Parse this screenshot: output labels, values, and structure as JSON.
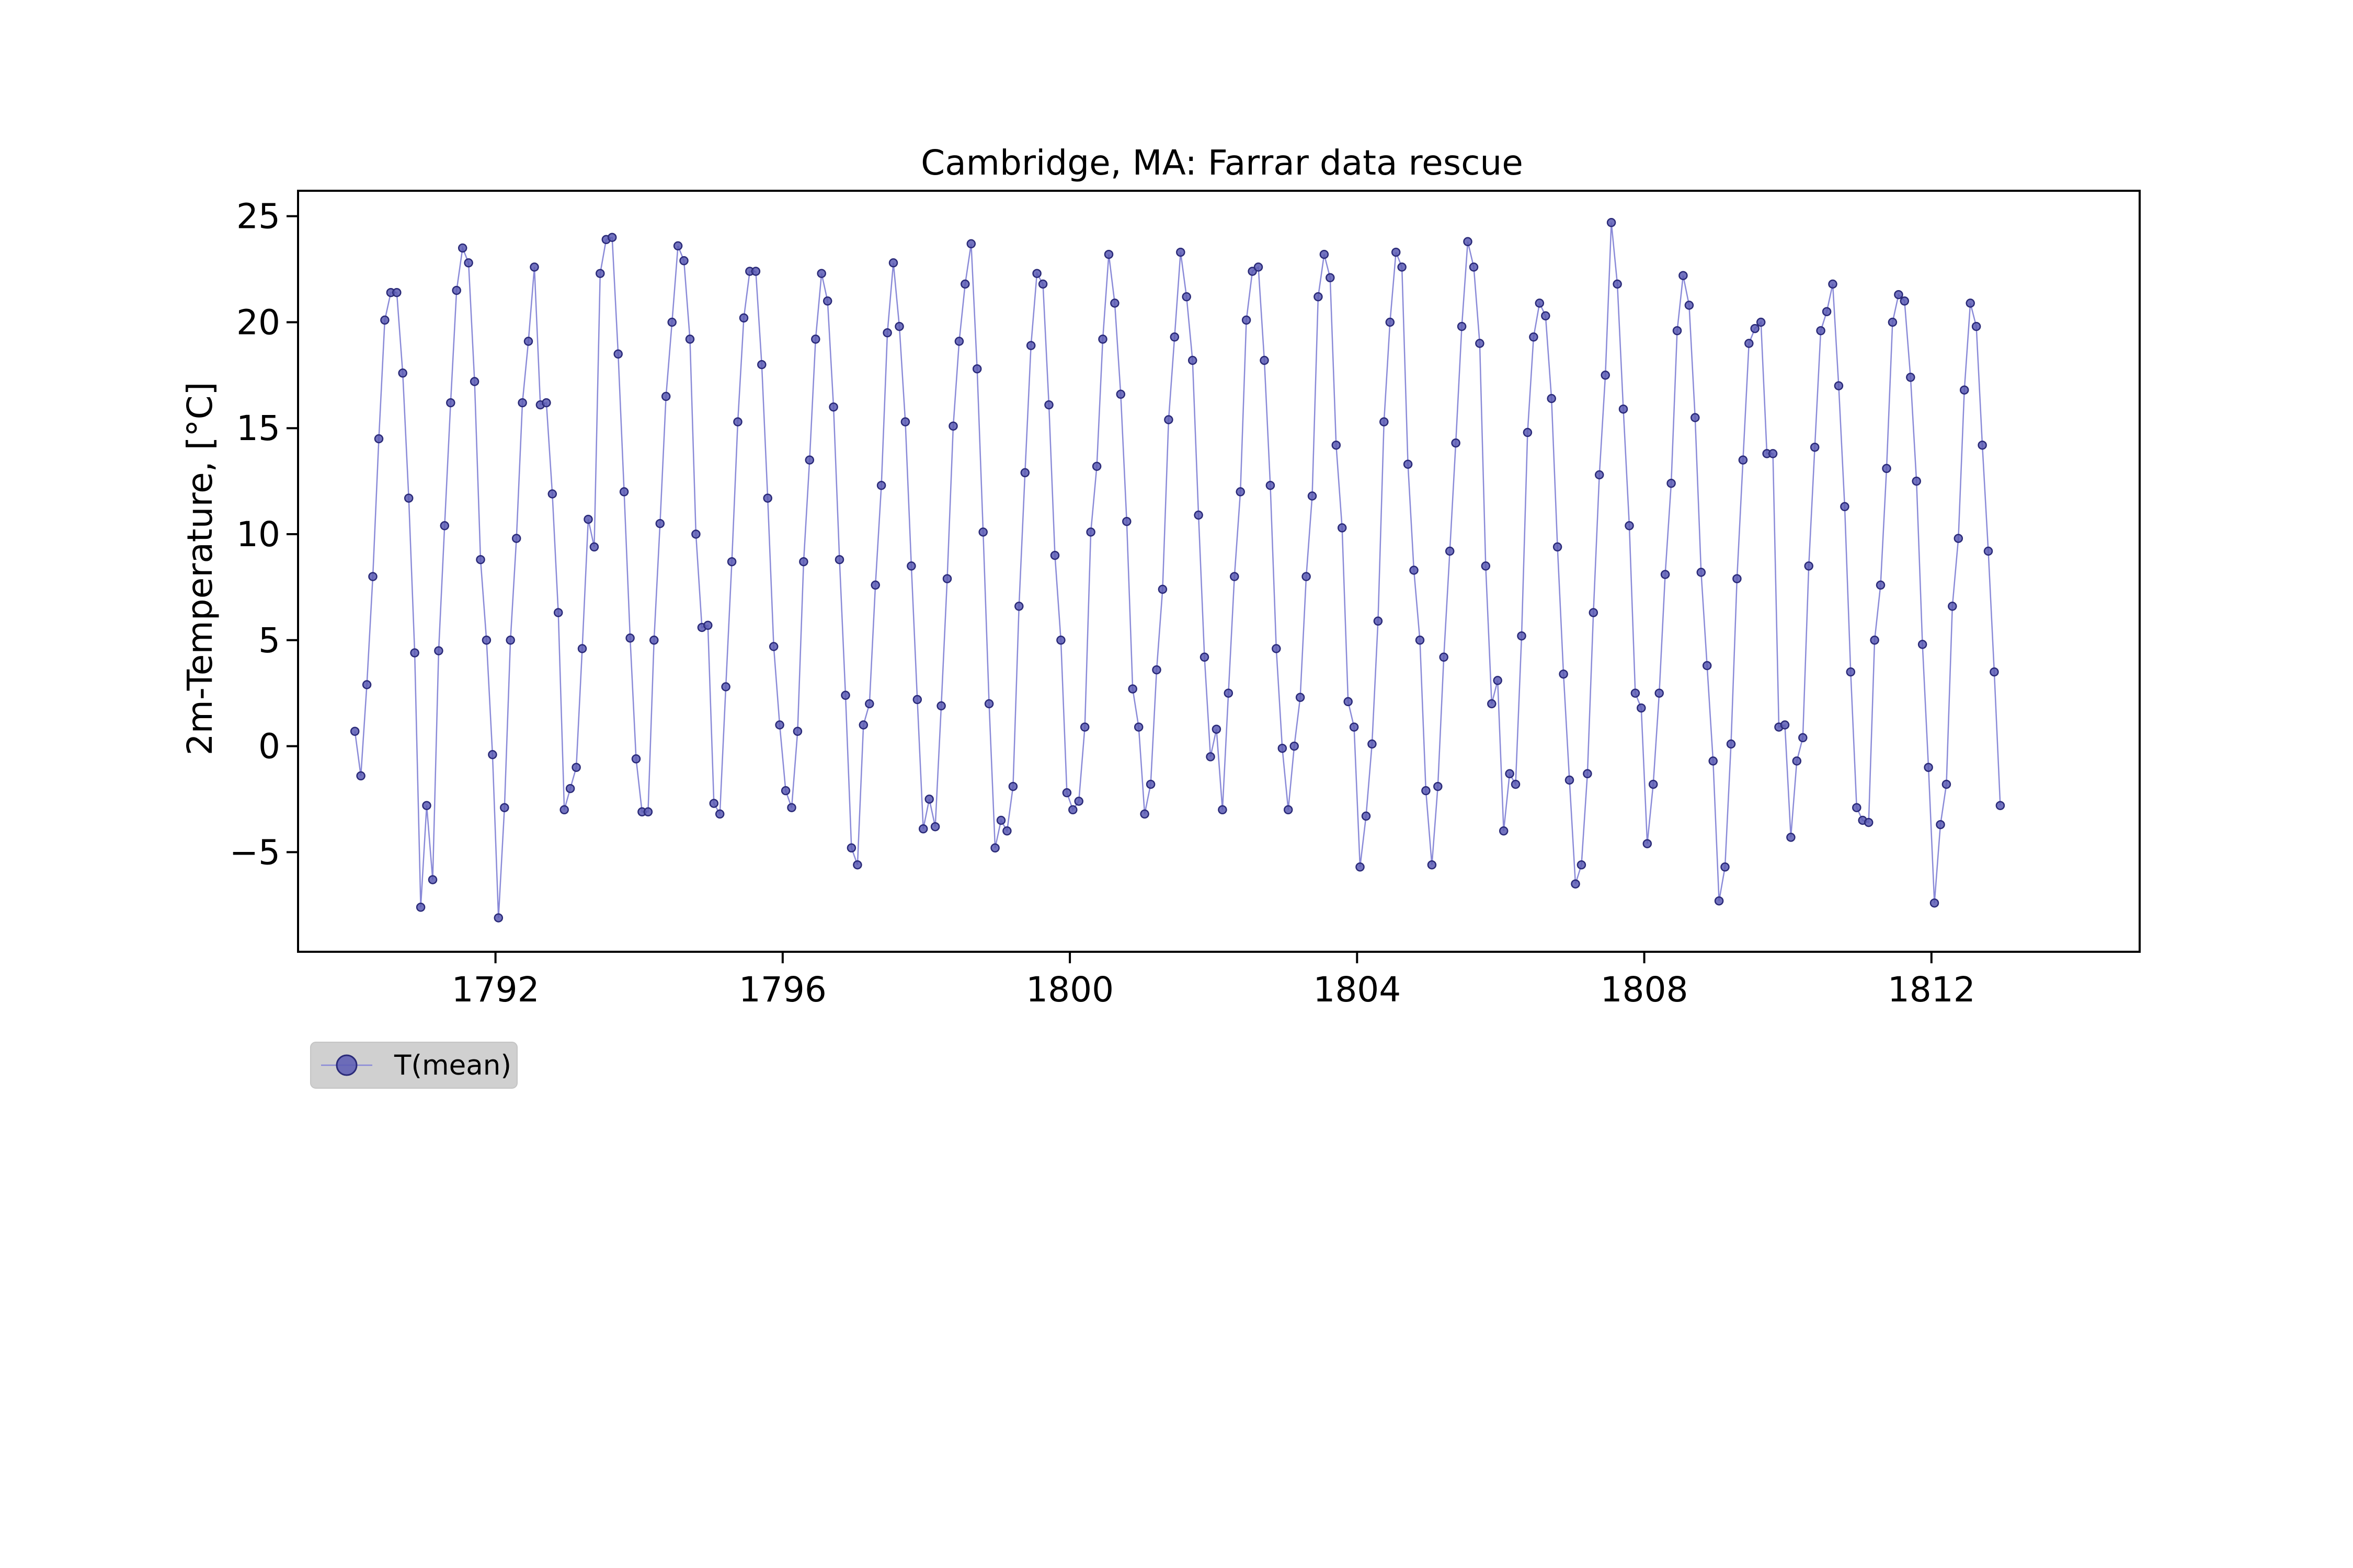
{
  "chart_data": {
    "type": "line",
    "title": "Cambridge, MA: Farrar data rescue",
    "xlabel": "",
    "ylabel": "2m-Temperature, [°C]",
    "xlim": [
      1789.25,
      1814.9
    ],
    "ylim": [
      -9.7,
      26.2
    ],
    "x_ticks": [
      1792,
      1796,
      1800,
      1804,
      1808,
      1812
    ],
    "y_ticks": [
      -5,
      0,
      5,
      10,
      15,
      20,
      25
    ],
    "grid": false,
    "legend_position": "below-left",
    "colors": {
      "line": "#8a8ad8",
      "marker_fill": "#5a5ab4",
      "marker_edge": "#2a2a78",
      "legend_bg": "#d0d0d0"
    },
    "start_year": 1790,
    "series": [
      {
        "name": "T(mean)",
        "values": [
          0.7,
          -1.4,
          2.9,
          8.0,
          14.5,
          20.1,
          21.4,
          21.4,
          17.6,
          11.7,
          4.4,
          -7.6,
          -2.8,
          -6.3,
          4.5,
          10.4,
          16.2,
          21.5,
          23.5,
          22.8,
          17.2,
          8.8,
          5.0,
          -0.4,
          -8.1,
          -2.9,
          5.0,
          9.8,
          16.2,
          19.1,
          22.6,
          16.1,
          16.2,
          11.9,
          6.3,
          -3.0,
          -2.0,
          -1.0,
          4.6,
          10.7,
          9.4,
          22.3,
          23.9,
          24.0,
          18.5,
          12.0,
          5.1,
          -0.6,
          -3.1,
          -3.1,
          5.0,
          10.5,
          16.5,
          20.0,
          23.6,
          22.9,
          19.2,
          10.0,
          5.6,
          5.7,
          -2.7,
          -3.2,
          2.8,
          8.7,
          15.3,
          20.2,
          22.4,
          22.4,
          18.0,
          11.7,
          4.7,
          1.0,
          -2.1,
          -2.9,
          0.7,
          8.7,
          13.5,
          19.2,
          22.3,
          21.0,
          16.0,
          8.8,
          2.4,
          -4.8,
          -5.6,
          1.0,
          2.0,
          7.6,
          12.3,
          19.5,
          22.8,
          19.8,
          15.3,
          8.5,
          2.2,
          -3.9,
          -2.5,
          -3.8,
          1.9,
          7.9,
          15.1,
          19.1,
          21.8,
          23.7,
          17.8,
          10.1,
          2.0,
          -4.8,
          -3.5,
          -4.0,
          -1.9,
          6.6,
          12.9,
          18.9,
          22.3,
          21.8,
          16.1,
          9.0,
          5.0,
          -2.2,
          -3.0,
          -2.6,
          0.9,
          10.1,
          13.2,
          19.2,
          23.2,
          20.9,
          16.6,
          10.6,
          2.7,
          0.9,
          -3.2,
          -1.8,
          3.6,
          7.4,
          15.4,
          19.3,
          23.3,
          21.2,
          18.2,
          10.9,
          4.2,
          -0.5,
          0.8,
          -3.0,
          2.5,
          8.0,
          12.0,
          20.1,
          22.4,
          22.6,
          18.2,
          12.3,
          4.6,
          -0.1,
          -3.0,
          0.0,
          2.3,
          8.0,
          11.8,
          21.2,
          23.2,
          22.1,
          14.2,
          10.3,
          2.1,
          0.9,
          -5.7,
          -3.3,
          0.1,
          5.9,
          15.3,
          20.0,
          23.3,
          22.6,
          13.3,
          8.3,
          5.0,
          -2.1,
          -5.6,
          -1.9,
          4.2,
          9.2,
          14.3,
          19.8,
          23.8,
          22.6,
          19.0,
          8.5,
          2.0,
          3.1,
          -4.0,
          -1.3,
          -1.8,
          5.2,
          14.8,
          19.3,
          20.9,
          20.3,
          16.4,
          9.4,
          3.4,
          -1.6,
          -6.5,
          -5.6,
          -1.3,
          6.3,
          12.8,
          17.5,
          24.7,
          21.8,
          15.9,
          10.4,
          2.5,
          1.8,
          -4.6,
          -1.8,
          2.5,
          8.1,
          12.4,
          19.6,
          22.2,
          20.8,
          15.5,
          8.2,
          3.8,
          -0.7,
          -7.3,
          -5.7,
          0.1,
          7.9,
          13.5,
          19.0,
          19.7,
          20.0,
          13.8,
          13.8,
          0.9,
          1.0,
          -4.3,
          -0.7,
          0.4,
          8.5,
          14.1,
          19.6,
          20.5,
          21.8,
          17.0,
          11.3,
          3.5,
          -2.9,
          -3.5,
          -3.6,
          5.0,
          7.6,
          13.1,
          20.0,
          21.3,
          21.0,
          17.4,
          12.5,
          4.8,
          -1.0,
          -7.4,
          -3.7,
          -1.8,
          6.6,
          9.8,
          16.8,
          20.9,
          19.8,
          14.2,
          9.2,
          3.5,
          -2.8
        ]
      }
    ]
  }
}
